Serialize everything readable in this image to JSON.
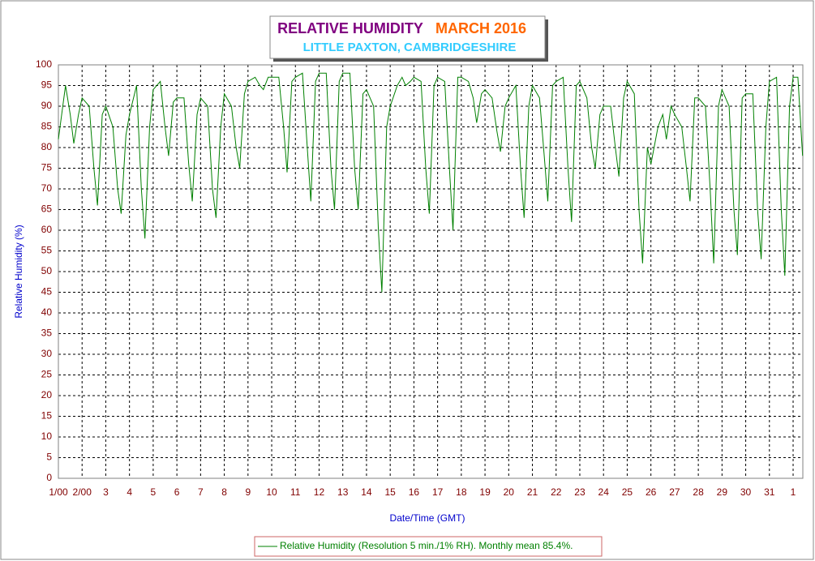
{
  "chart_data": {
    "type": "line",
    "title": "RELATIVE HUMIDITY",
    "title_2": "MARCH 2016",
    "subtitle": "LITTLE PAXTON, CAMBRIDGESHIRE",
    "x_label": "Date/Time (GMT)",
    "y_label": "Relative Humidity (%)",
    "x": [
      1,
      1.3,
      1.5,
      1.65,
      1.85,
      2,
      2.3,
      2.5,
      2.65,
      2.85,
      3,
      3.3,
      3.5,
      3.65,
      3.85,
      4,
      4.3,
      4.5,
      4.65,
      4.85,
      5,
      5.3,
      5.5,
      5.65,
      5.85,
      6,
      6.3,
      6.5,
      6.65,
      6.85,
      7,
      7.3,
      7.5,
      7.65,
      7.85,
      8,
      8.3,
      8.5,
      8.65,
      8.85,
      9,
      9.3,
      9.5,
      9.65,
      9.85,
      10,
      10.3,
      10.5,
      10.65,
      10.85,
      11,
      11.3,
      11.5,
      11.65,
      11.85,
      12,
      12.3,
      12.5,
      12.65,
      12.85,
      13,
      13.3,
      13.5,
      13.65,
      13.85,
      14,
      14.3,
      14.5,
      14.65,
      14.85,
      15,
      15.3,
      15.5,
      15.65,
      15.85,
      16,
      16.3,
      16.5,
      16.65,
      16.85,
      17,
      17.3,
      17.5,
      17.65,
      17.85,
      18,
      18.3,
      18.5,
      18.65,
      18.85,
      19,
      19.3,
      19.5,
      19.65,
      19.85,
      20,
      20.3,
      20.5,
      20.65,
      20.85,
      21,
      21.3,
      21.5,
      21.65,
      21.85,
      22,
      22.3,
      22.5,
      22.65,
      22.85,
      23,
      23.3,
      23.5,
      23.65,
      23.85,
      24,
      24.3,
      24.5,
      24.65,
      24.85,
      25,
      25.3,
      25.5,
      25.65,
      25.85,
      26,
      26.3,
      26.5,
      26.65,
      26.85,
      27,
      27.3,
      27.5,
      27.65,
      27.85,
      28,
      28.3,
      28.5,
      28.65,
      28.85,
      29,
      29.3,
      29.5,
      29.65,
      29.85,
      30,
      30.3,
      30.5,
      30.65,
      30.85,
      31,
      31.3,
      31.5,
      31.65,
      31.85,
      32,
      32.2,
      32.4
    ],
    "series": [
      {
        "name": "Relative Humidity (Resolution 5 min./1% RH). Monthly mean 85.4%.",
        "color": "#008000",
        "values": [
          82,
          95,
          88,
          81,
          88,
          92,
          90,
          75,
          66,
          88,
          90,
          85,
          70,
          64,
          83,
          88,
          95,
          70,
          58,
          85,
          94,
          96,
          85,
          78,
          91,
          92,
          92,
          76,
          67,
          88,
          92,
          90,
          70,
          63,
          85,
          93,
          90,
          80,
          75,
          93,
          96,
          97,
          95,
          94,
          97,
          97,
          97,
          85,
          74,
          96,
          97,
          98,
          80,
          67,
          96,
          98,
          98,
          75,
          65,
          96,
          98,
          98,
          75,
          65,
          93,
          94,
          90,
          60,
          45,
          85,
          90,
          95,
          97,
          95,
          96,
          97,
          96,
          75,
          64,
          95,
          97,
          96,
          75,
          60,
          97,
          97,
          96,
          92,
          86,
          93,
          94,
          92,
          84,
          79,
          90,
          92,
          95,
          75,
          63,
          90,
          95,
          92,
          78,
          67,
          95,
          96,
          97,
          75,
          62,
          95,
          96,
          92,
          80,
          75,
          88,
          90,
          90,
          80,
          73,
          92,
          96,
          93,
          65,
          52,
          80,
          76,
          85,
          88,
          82,
          90,
          88,
          85,
          75,
          67,
          92,
          92,
          90,
          70,
          52,
          90,
          94,
          90,
          65,
          54,
          92,
          93,
          93,
          65,
          53,
          85,
          96,
          97,
          65,
          49,
          90,
          97,
          97,
          78
        ]
      }
    ],
    "xlim": [
      1,
      32.41
    ],
    "xticks": [
      {
        "value": 1,
        "label": "1/00"
      },
      {
        "value": 2,
        "label": "2/00"
      },
      3,
      4,
      5,
      6,
      7,
      8,
      9,
      10,
      11,
      12,
      13,
      14,
      15,
      16,
      17,
      18,
      19,
      20,
      21,
      22,
      23,
      24,
      25,
      26,
      27,
      28,
      29,
      30,
      31,
      {
        "value": 32,
        "label": "1"
      }
    ],
    "ylim": [
      0,
      100
    ],
    "yticks": [
      0,
      5,
      10,
      15,
      20,
      25,
      30,
      35,
      40,
      45,
      50,
      55,
      60,
      65,
      70,
      75,
      80,
      85,
      90,
      95,
      100
    ],
    "grid": true
  }
}
